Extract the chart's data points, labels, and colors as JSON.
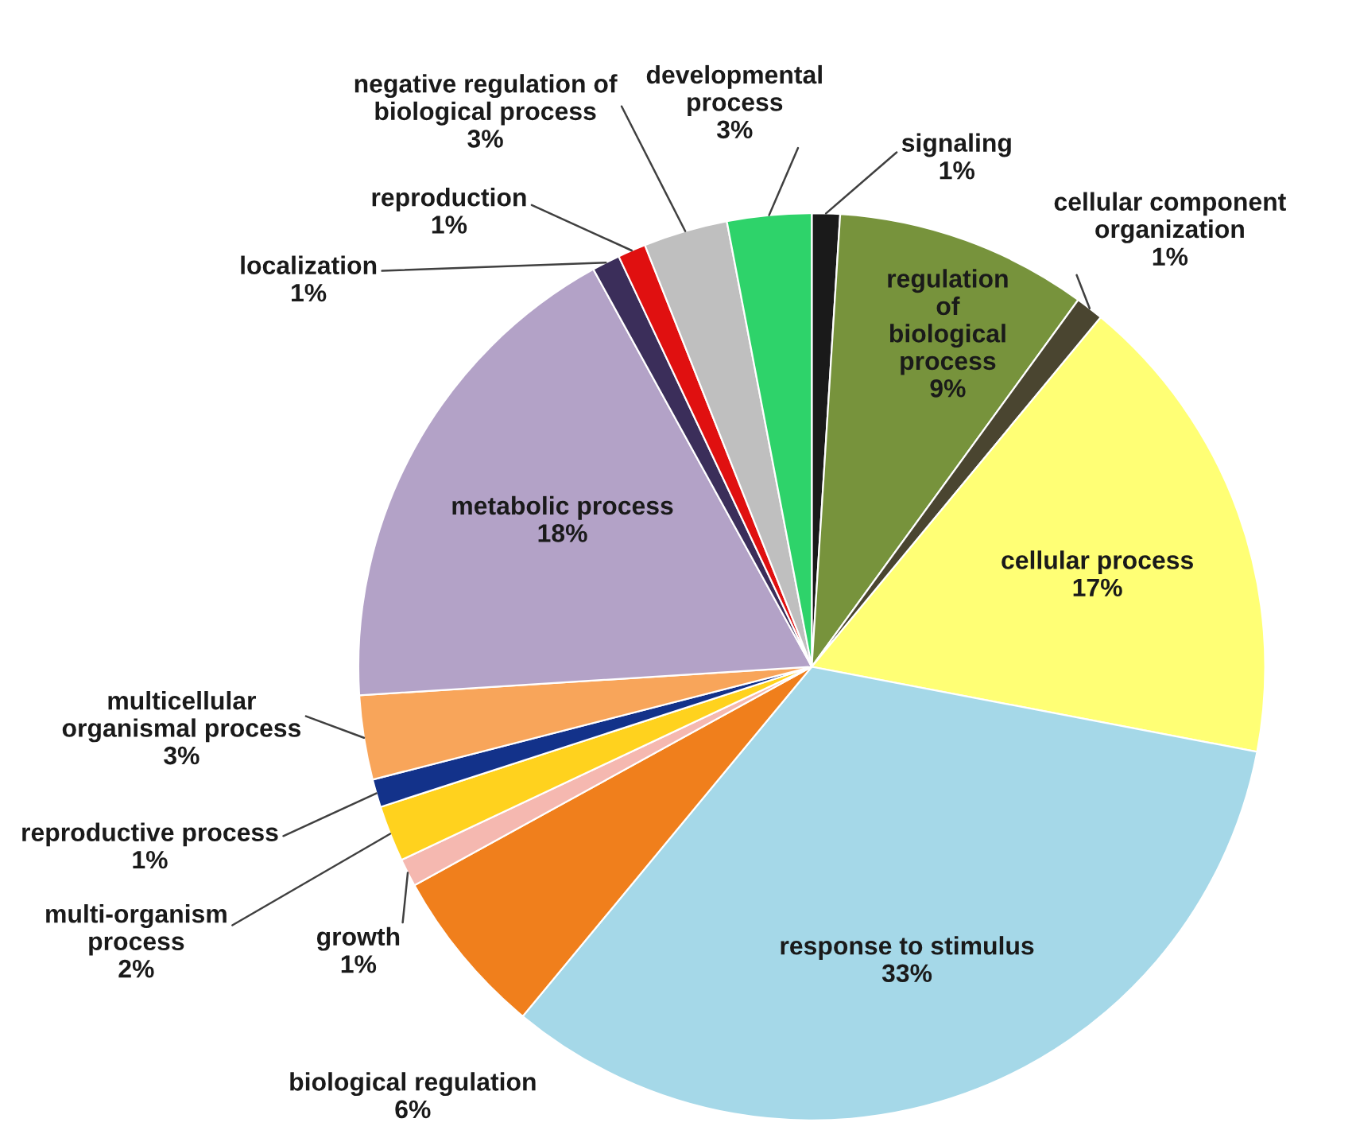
{
  "chart_data": {
    "type": "pie",
    "categories": [
      "signaling",
      "regulation of biological process",
      "cellular component organization",
      "cellular process",
      "response to stimulus",
      "biological regulation",
      "growth",
      "multi-organism process",
      "reproductive process",
      "multicellular organismal process",
      "metabolic process",
      "localization",
      "reproduction",
      "negative regulation of biological process",
      "developmental process"
    ],
    "values": [
      1,
      9,
      1,
      17,
      33,
      6,
      1,
      2,
      1,
      3,
      18,
      1,
      1,
      3,
      3
    ],
    "value_labels": [
      "1%",
      "9%",
      "1%",
      "17%",
      "33%",
      "6%",
      "1%",
      "2%",
      "1%",
      "3%",
      "18%",
      "1%",
      "1%",
      "3%",
      "3%"
    ],
    "colors": [
      "#1a1a1a",
      "#77933c",
      "#4a4530",
      "#ffff75",
      "#a5d8e8",
      "#f07f1c",
      "#f5b8b0",
      "#ffd21e",
      "#13328a",
      "#f8a55a",
      "#b3a2c7",
      "#3b2e5a",
      "#e01010",
      "#bfbfbf",
      "#2ed36a"
    ]
  }
}
